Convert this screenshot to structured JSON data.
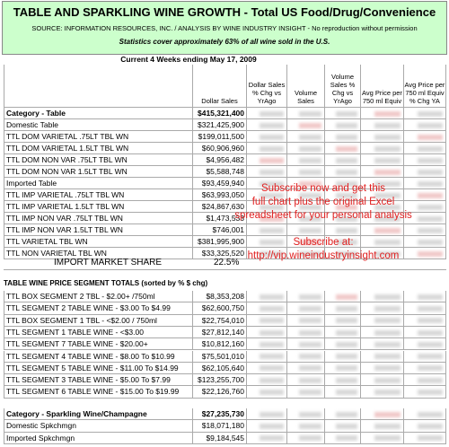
{
  "header": {
    "title": "TABLE AND SPARKLING WINE GROWTH - Total US Food/Drug/Convenience",
    "source": "SOURCE:  INFORMATION RESOURCES, INC. / ANALYSIS BY WINE INDUSTRY INSIGHT - No  reproduction without permission",
    "note": "Statistics cover approximately 63% of all wine sold in the U.S."
  },
  "period": "Current 4 Weeks ending May 17, 2009",
  "columns": [
    "Dollar Sales",
    "Dollar Sales % Chg vs YrAgo",
    "Volume Sales",
    "Volume Sales % Chg vs YrAgo",
    "Avg Price per 750 ml Equiv",
    "Avg Price per 750 ml Equiv % Chg YA"
  ],
  "table_rows": [
    [
      "Category - Table",
      "$415,321,400"
    ],
    [
      "Domestic Table",
      "$321,425,900"
    ],
    [
      "TTL DOM VARIETAL .75LT TBL WN",
      "$199,011,500"
    ],
    [
      "TTL DOM VARIETAL 1.5LT TBL WN",
      "$60,906,960"
    ],
    [
      "TTL DOM NON VAR .75LT TBL WN",
      "$4,956,482"
    ],
    [
      "TTL DOM NON VAR 1.5LT TBL WN",
      "$5,588,748"
    ],
    [
      "Imported Table",
      "$93,459,940"
    ],
    [
      "TTL IMP VARIETAL .75LT TBL WN",
      "$63,993,050"
    ],
    [
      "TTL IMP VARIETAL 1.5LT TBL WN",
      "$24,867,630"
    ],
    [
      "TTL IMP NON VAR .75LT TBL WN",
      "$1,473,533"
    ],
    [
      "TTL IMP NON VAR 1.5LT TBL WN",
      "$746,001"
    ],
    [
      "TTL VARIETAL TBL WN",
      "$381,995,900"
    ],
    [
      "TTL NON VARIETAL TBL WN",
      "$33,325,520"
    ]
  ],
  "import_share": {
    "label": "IMPORT MARKET SHARE",
    "value": "22.5%"
  },
  "segment_heading": "TABLE WINE PRICE SEGMENT TOTALS (sorted by % $ chg)",
  "segment_rows": [
    [
      "TTL BOX SEGMENT 2 TBL - $2.00+ /750ml",
      "$8,353,208"
    ],
    [
      "TTL SEGMENT 2 TABLE WINE - $3.00 To $4.99",
      "$62,600,750"
    ],
    [
      "TTL BOX SEGMENT 1 TBL - <$2.00 / 750ml",
      "$22,754,010"
    ],
    [
      "TTL SEGMENT 1 TABLE WINE - <$3.00",
      "$27,812,140"
    ],
    [
      "TTL SEGMENT 7 TABLE WINE - $20.00+",
      "$10,812,160"
    ],
    [
      "TTL SEGMENT 4 TABLE WINE - $8.00 To $10.99",
      "$75,501,010"
    ],
    [
      "TTL SEGMENT 5 TABLE WINE - $11.00 To $14.99",
      "$62,105,640"
    ],
    [
      "TTL SEGMENT 3 TABLE WINE - $5.00 To $7.99",
      "$123,255,700"
    ],
    [
      "TTL SEGMENT 6 TABLE WINE - $15.00 To $19.99",
      "$22,126,760"
    ]
  ],
  "sparkling_rows": [
    [
      "Category - Sparkling Wine/Champagne",
      "$27,235,730"
    ],
    [
      "Domestic Spkchmgn",
      "$18,071,180"
    ],
    [
      "Imported Spkchmgn",
      "$9,184,545"
    ]
  ],
  "overlay": {
    "offer": [
      "Subscribe now and get this",
      "full chart plus  the original Excel",
      "spreadsheet for your personal analysis"
    ],
    "subscribe": [
      "Subscribe at:",
      "http://vip.wineindustryinsight.com"
    ]
  }
}
